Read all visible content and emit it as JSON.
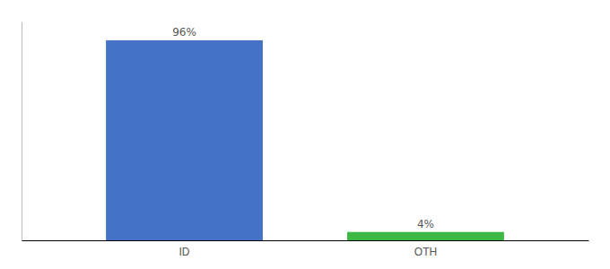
{
  "chart_data": {
    "type": "bar",
    "categories": [
      "ID",
      "OTH"
    ],
    "values": [
      96,
      4
    ],
    "value_labels": [
      "96%",
      "4%"
    ],
    "colors": [
      "#4472c4",
      "#3cb843"
    ],
    "ylim": [
      0,
      105
    ],
    "tick_labels": "x"
  }
}
